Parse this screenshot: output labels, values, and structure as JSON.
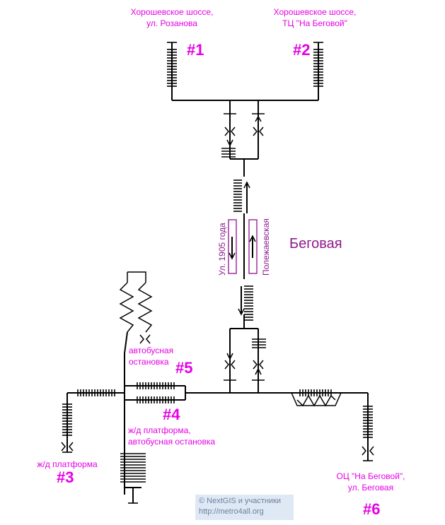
{
  "station": {
    "name": "Беговая"
  },
  "streets": {
    "left": "Ул. 1905 года",
    "right": "Полежаевская"
  },
  "exits": [
    {
      "num": "#1",
      "line1": "Хорошевское шоссе,",
      "line2": "ул. Розанова"
    },
    {
      "num": "#2",
      "line1": "Хорошевское шоссе,",
      "line2": "ТЦ \"На Беговой\""
    },
    {
      "num": "#3",
      "line1": "ж/д платформа",
      "line2": ""
    },
    {
      "num": "#4",
      "line1": "ж/д платформа,",
      "line2": "автобусная остановка"
    },
    {
      "num": "#5",
      "line1": "автобусная",
      "line2": "остановка"
    },
    {
      "num": "#6",
      "line1": "ОЦ \"На Беговой\",",
      "line2": "ул. Беговая"
    }
  ],
  "copyright": {
    "line1": "© NextGIS и участники",
    "line2": "http://metro4all.org"
  },
  "colors": {
    "exit_label": "#e400e4",
    "station": "#8b1a8b",
    "stroke": "#000000"
  }
}
